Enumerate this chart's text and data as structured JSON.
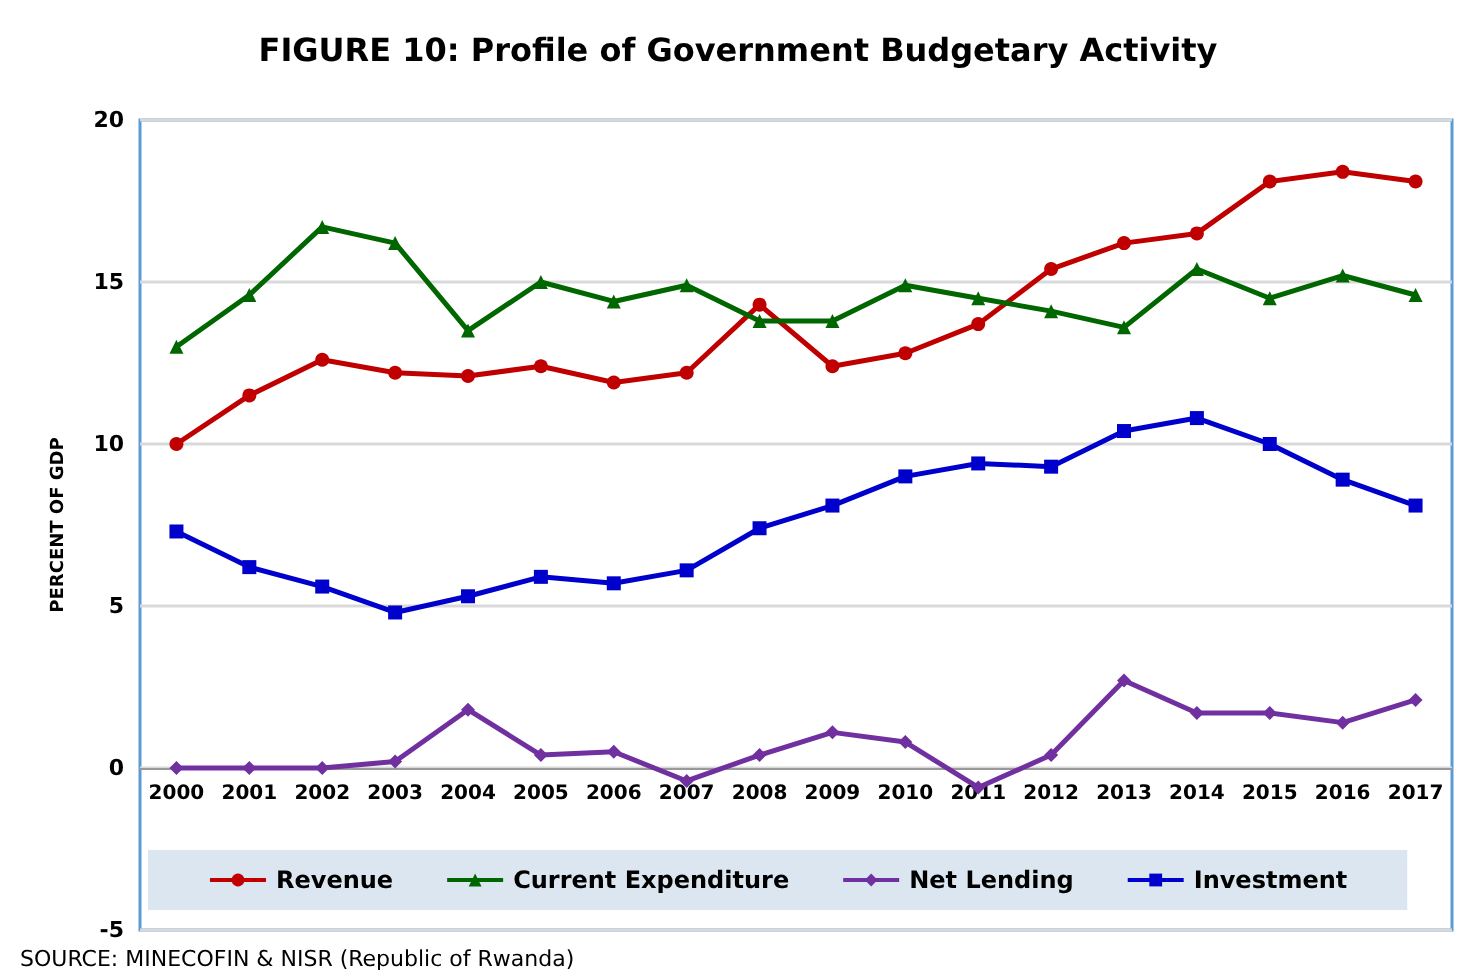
{
  "chart_data": {
    "type": "line",
    "title": "FIGURE 10: Profile of Government Budgetary Activity",
    "ylabel": "PERCENT OF GDP",
    "categories": [
      "2000",
      "2001",
      "2002",
      "2003",
      "2004",
      "2005",
      "2006",
      "2007",
      "2008",
      "2009",
      "2010",
      "2011",
      "2012",
      "2013",
      "2014",
      "2015",
      "2016",
      "2017"
    ],
    "series": [
      {
        "name": "Revenue",
        "color": "#c00000",
        "marker": "circle",
        "values": [
          10.0,
          11.5,
          12.6,
          12.2,
          12.1,
          12.4,
          11.9,
          12.2,
          14.3,
          12.4,
          12.8,
          13.7,
          15.4,
          16.2,
          16.5,
          18.1,
          18.4,
          18.1
        ]
      },
      {
        "name": "Current Expenditure",
        "color": "#006600",
        "marker": "triangle",
        "values": [
          13.0,
          14.6,
          16.7,
          16.2,
          13.5,
          15.0,
          14.4,
          14.9,
          13.8,
          13.8,
          14.9,
          14.5,
          14.1,
          13.6,
          15.4,
          14.5,
          15.2,
          14.6
        ]
      },
      {
        "name": "Net Lending",
        "color": "#7030a0",
        "marker": "diamond",
        "values": [
          0,
          0,
          0,
          0.2,
          1.8,
          0.4,
          0.5,
          -0.4,
          0.4,
          1.1,
          0.8,
          -0.6,
          0.4,
          2.7,
          1.7,
          1.7,
          1.4,
          2.1
        ]
      },
      {
        "name": "Investment",
        "color": "#0000cc",
        "marker": "square",
        "values": [
          7.3,
          6.2,
          5.6,
          4.8,
          5.3,
          5.9,
          5.7,
          6.1,
          7.4,
          8.1,
          9.0,
          9.4,
          9.3,
          10.4,
          10.8,
          10.0,
          8.9,
          8.1
        ]
      }
    ],
    "ylim": [
      -5,
      20
    ],
    "yticks": [
      -5,
      0,
      5,
      10,
      15,
      20
    ],
    "grid": "y",
    "legend": "bottom",
    "annotations": [
      "SOURCE: MINECOFIN & NISR (Republic of Rwanda)"
    ]
  }
}
